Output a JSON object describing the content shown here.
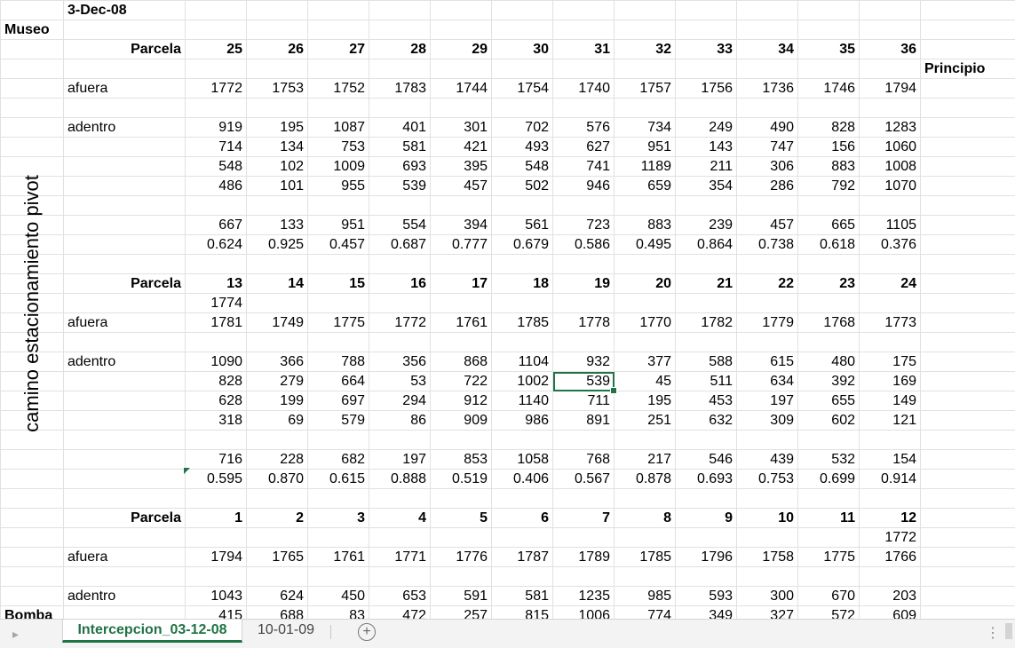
{
  "sheet": {
    "date": "3-Dec-08",
    "museo": "Museo",
    "principio": "Principio",
    "bomba": "Bomba",
    "vertical_label": "camino estacionamiento pivot",
    "labels": {
      "parcela": "Parcela",
      "afuera": "afuera",
      "adentro": "adentro"
    },
    "blocks": [
      {
        "parcelas": [
          "25",
          "26",
          "27",
          "28",
          "29",
          "30",
          "31",
          "32",
          "33",
          "34",
          "35",
          "36"
        ],
        "extra_above_afuera": [
          "",
          "",
          "",
          "",
          "",
          "",
          "",
          "",
          "",
          "",
          "",
          ""
        ],
        "afuera": [
          "1772",
          "1753",
          "1752",
          "1783",
          "1744",
          "1754",
          "1740",
          "1757",
          "1756",
          "1736",
          "1746",
          "1794"
        ],
        "adentro": [
          [
            "919",
            "195",
            "1087",
            "401",
            "301",
            "702",
            "576",
            "734",
            "249",
            "490",
            "828",
            "1283"
          ],
          [
            "714",
            "134",
            "753",
            "581",
            "421",
            "493",
            "627",
            "951",
            "143",
            "747",
            "156",
            "1060"
          ],
          [
            "548",
            "102",
            "1009",
            "693",
            "395",
            "548",
            "741",
            "1189",
            "211",
            "306",
            "883",
            "1008"
          ],
          [
            "486",
            "101",
            "955",
            "539",
            "457",
            "502",
            "946",
            "659",
            "354",
            "286",
            "792",
            "1070"
          ]
        ],
        "avg": [
          "667",
          "133",
          "951",
          "554",
          "394",
          "561",
          "723",
          "883",
          "239",
          "457",
          "665",
          "1105"
        ],
        "ratio": [
          "0.624",
          "0.925",
          "0.457",
          "0.687",
          "0.777",
          "0.679",
          "0.586",
          "0.495",
          "0.864",
          "0.738",
          "0.618",
          "0.376"
        ]
      },
      {
        "parcelas": [
          "13",
          "14",
          "15",
          "16",
          "17",
          "18",
          "19",
          "20",
          "21",
          "22",
          "23",
          "24"
        ],
        "extra_above_afuera": [
          "1774",
          "",
          "",
          "",
          "",
          "",
          "",
          "",
          "",
          "",
          "",
          ""
        ],
        "afuera": [
          "1781",
          "1749",
          "1775",
          "1772",
          "1761",
          "1785",
          "1778",
          "1770",
          "1782",
          "1779",
          "1768",
          "1773"
        ],
        "adentro": [
          [
            "1090",
            "366",
            "788",
            "356",
            "868",
            "1104",
            "932",
            "377",
            "588",
            "615",
            "480",
            "175"
          ],
          [
            "828",
            "279",
            "664",
            "53",
            "722",
            "1002",
            "539",
            "45",
            "511",
            "634",
            "392",
            "169"
          ],
          [
            "628",
            "199",
            "697",
            "294",
            "912",
            "1140",
            "711",
            "195",
            "453",
            "197",
            "655",
            "149"
          ],
          [
            "318",
            "69",
            "579",
            "86",
            "909",
            "986",
            "891",
            "251",
            "632",
            "309",
            "602",
            "121"
          ]
        ],
        "avg": [
          "716",
          "228",
          "682",
          "197",
          "853",
          "1058",
          "768",
          "217",
          "546",
          "439",
          "532",
          "154"
        ],
        "ratio": [
          "0.595",
          "0.870",
          "0.615",
          "0.888",
          "0.519",
          "0.406",
          "0.567",
          "0.878",
          "0.693",
          "0.753",
          "0.699",
          "0.914"
        ]
      },
      {
        "parcelas": [
          "1",
          "2",
          "3",
          "4",
          "5",
          "6",
          "7",
          "8",
          "9",
          "10",
          "11",
          "12"
        ],
        "extra_above_afuera": [
          "",
          "",
          "",
          "",
          "",
          "",
          "",
          "",
          "",
          "",
          "",
          "1772"
        ],
        "afuera": [
          "1794",
          "1765",
          "1761",
          "1771",
          "1776",
          "1787",
          "1789",
          "1785",
          "1796",
          "1758",
          "1775",
          "1766"
        ],
        "adentro": [
          [
            "1043",
            "624",
            "450",
            "653",
            "591",
            "581",
            "1235",
            "985",
            "593",
            "300",
            "670",
            "203"
          ],
          [
            "415",
            "688",
            "83",
            "472",
            "257",
            "815",
            "1006",
            "774",
            "349",
            "327",
            "572",
            "609"
          ]
        ]
      }
    ]
  },
  "tabs": {
    "active": "Intercepcion_03-12-08",
    "other": "10-01-09",
    "add_symbol": "+",
    "nav_symbol": "▸",
    "more_symbol": "⋮"
  },
  "colors": {
    "accent": "#217346",
    "gridline": "#e1e1e1"
  }
}
